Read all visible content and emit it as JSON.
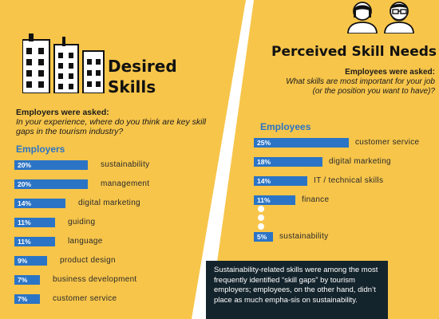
{
  "left": {
    "title_line1": "Desired",
    "title_line2": "Skills",
    "question_head": "Employers were asked:",
    "question_body": "In your experience, where do you think are key skill gaps in the tourism industry?",
    "section_label": "Employers",
    "bars": [
      {
        "value": 20,
        "label": "20%",
        "text": "sustainability"
      },
      {
        "value": 20,
        "label": "20%",
        "text": "management"
      },
      {
        "value": 14,
        "label": "14%",
        "text": "digital marketing"
      },
      {
        "value": 11,
        "label": "11%",
        "text": "guiding"
      },
      {
        "value": 11,
        "label": "11%",
        "text": "language"
      },
      {
        "value": 9,
        "label": "9%",
        "text": "product design"
      },
      {
        "value": 7,
        "label": "7%",
        "text": "business development"
      },
      {
        "value": 7,
        "label": "7%",
        "text": "customer service"
      }
    ]
  },
  "right": {
    "title": "Perceived Skill Needs",
    "question_head": "Employees were asked:",
    "question_body": "What skills are most important for your job (or the position you want to have)?",
    "section_label": "Employees",
    "bars": [
      {
        "value": 25,
        "label": "25%",
        "text": "customer service"
      },
      {
        "value": 18,
        "label": "18%",
        "text": "digital marketing"
      },
      {
        "value": 14,
        "label": "14%",
        "text": "IT / technical skills"
      },
      {
        "value": 11,
        "label": "11%",
        "text": "finance"
      },
      {
        "value": 5,
        "label": "5%",
        "text": "sustainability"
      }
    ]
  },
  "note": "Sustainability-related skills were among the most frequently identified “skill gaps” by tourism employers; employees, on the other hand, didn’t place as much empha-sis on sustainability.",
  "colors": {
    "background": "#f7c54a",
    "bar": "#2b74c5",
    "note_bg": "#14242c"
  },
  "icons": {
    "buildings": "buildings-icon",
    "people": "people-icon"
  }
}
